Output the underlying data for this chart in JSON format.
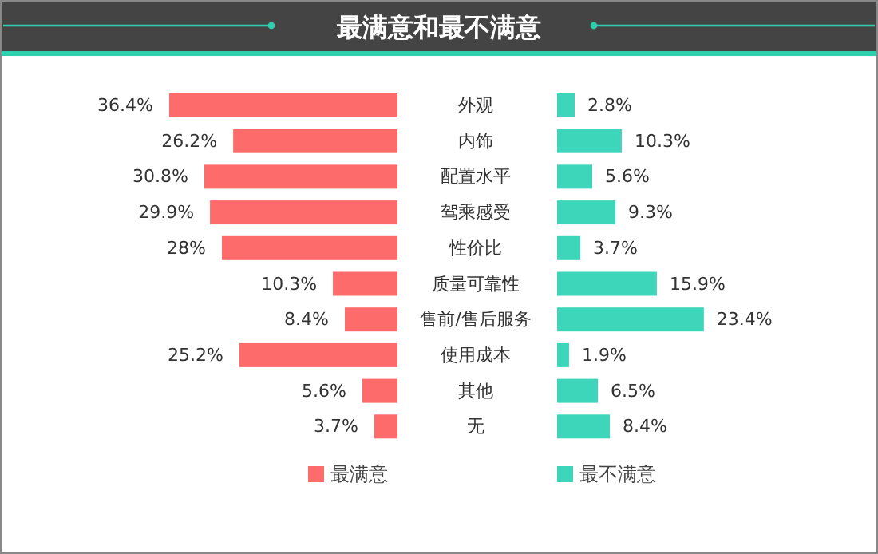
{
  "chart_data": [
    {
      "type": "bar",
      "orientation": "horizontal",
      "title": "最满意和最不满意",
      "categories": [
        "外观",
        "内饰",
        "配置水平",
        "驾乘感受",
        "性价比",
        "质量可靠性",
        "售前/售后服务",
        "使用成本",
        "其他",
        "无"
      ],
      "series": [
        {
          "name": "最满意",
          "color": "#fe6b6b",
          "values": [
            36.4,
            26.2,
            30.8,
            29.9,
            28,
            10.3,
            8.4,
            25.2,
            5.6,
            3.7
          ],
          "value_labels": [
            "36.4%",
            "26.2%",
            "30.8%",
            "29.9%",
            "28%",
            "10.3%",
            "8.4%",
            "25.2%",
            "5.6%",
            "3.7%"
          ]
        }
      ],
      "legend": "bottom"
    },
    {
      "type": "bar",
      "orientation": "horizontal",
      "categories": [
        null,
        null,
        null,
        null,
        null,
        null,
        null,
        null,
        null,
        null
      ],
      "series": [
        {
          "name": "最不满意",
          "color": "#3dd6bb",
          "values": [
            2.8,
            10.3,
            5.6,
            9.3,
            3.7,
            15.9,
            23.4,
            1.9,
            6.5,
            8.4
          ],
          "value_labels": [
            "2.8%",
            "10.3%",
            "5.6%",
            "9.3%",
            "3.7%",
            "15.9%",
            "23.4%",
            "1.9%",
            "6.5%",
            "8.4%"
          ]
        }
      ],
      "legend": "bottom"
    }
  ]
}
